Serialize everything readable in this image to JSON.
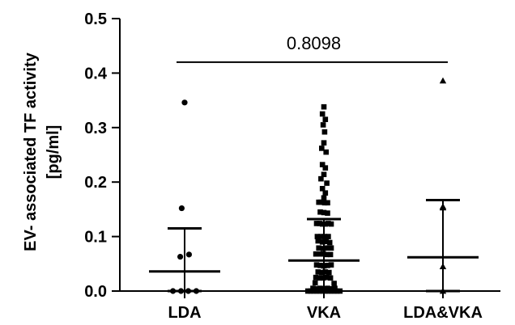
{
  "chart_data": {
    "type": "scatter",
    "subtype": "dot-plot-with-median-and-iqr",
    "ylabel_line1": "EV- associated TF activity",
    "ylabel_line2": "[pg/ml]",
    "ylim": [
      0,
      0.5
    ],
    "yticks": [
      "0.0",
      "0.1",
      "0.2",
      "0.3",
      "0.4",
      "0.5"
    ],
    "categories": [
      "LDA",
      "VKA",
      "LDA&VKA"
    ],
    "annotation": {
      "text": "0.8098",
      "from_category": 0,
      "to_category": 2,
      "y": 0.42
    },
    "groups": [
      {
        "name": "LDA",
        "marker": "circle",
        "median": 0.036,
        "q1": 0.0,
        "q3": 0.115,
        "points": [
          {
            "y": 0.346,
            "dx": 0
          },
          {
            "y": 0.152,
            "dx": -0.2
          },
          {
            "y": 0.067,
            "dx": 0.3
          },
          {
            "y": 0.063,
            "dx": -0.3
          },
          {
            "y": 0.0,
            "dx": -0.8
          },
          {
            "y": 0.0,
            "dx": -0.25
          },
          {
            "y": 0.0,
            "dx": 0.25
          },
          {
            "y": 0.0,
            "dx": 0.8
          }
        ]
      },
      {
        "name": "VKA",
        "marker": "square",
        "median": 0.056,
        "q1": 0.0,
        "q3": 0.132,
        "points": [
          {
            "y": 0.338,
            "dx": 0.0
          },
          {
            "y": 0.325,
            "dx": -0.1
          },
          {
            "y": 0.315,
            "dx": 0.1
          },
          {
            "y": 0.305,
            "dx": -0.05
          },
          {
            "y": 0.292,
            "dx": 0.05
          },
          {
            "y": 0.272,
            "dx": 0.0
          },
          {
            "y": 0.262,
            "dx": -0.15
          },
          {
            "y": 0.255,
            "dx": 0.15
          },
          {
            "y": 0.232,
            "dx": -0.1
          },
          {
            "y": 0.226,
            "dx": 0.1
          },
          {
            "y": 0.214,
            "dx": 0.0
          },
          {
            "y": 0.206,
            "dx": -0.2
          },
          {
            "y": 0.198,
            "dx": 0.2
          },
          {
            "y": 0.188,
            "dx": -0.1
          },
          {
            "y": 0.18,
            "dx": 0.1
          },
          {
            "y": 0.171,
            "dx": 0.0
          },
          {
            "y": 0.163,
            "dx": -0.35
          },
          {
            "y": 0.163,
            "dx": -0.2
          },
          {
            "y": 0.162,
            "dx": 0.05
          },
          {
            "y": 0.162,
            "dx": 0.25
          },
          {
            "y": 0.145,
            "dx": -0.25
          },
          {
            "y": 0.144,
            "dx": 0.0
          },
          {
            "y": 0.143,
            "dx": 0.25
          },
          {
            "y": 0.124,
            "dx": -0.5
          },
          {
            "y": 0.124,
            "dx": -0.3
          },
          {
            "y": 0.123,
            "dx": -0.1
          },
          {
            "y": 0.123,
            "dx": 0.1
          },
          {
            "y": 0.124,
            "dx": 0.3
          },
          {
            "y": 0.123,
            "dx": 0.5
          },
          {
            "y": 0.1,
            "dx": -0.45
          },
          {
            "y": 0.1,
            "dx": -0.2
          },
          {
            "y": 0.1,
            "dx": 0.05
          },
          {
            "y": 0.1,
            "dx": 0.3
          },
          {
            "y": 0.092,
            "dx": -0.4
          },
          {
            "y": 0.09,
            "dx": -0.1
          },
          {
            "y": 0.091,
            "dx": 0.15
          },
          {
            "y": 0.089,
            "dx": 0.4
          },
          {
            "y": 0.079,
            "dx": -0.35
          },
          {
            "y": 0.078,
            "dx": -0.05
          },
          {
            "y": 0.079,
            "dx": 0.25
          },
          {
            "y": 0.079,
            "dx": 0.5
          },
          {
            "y": 0.068,
            "dx": -0.55
          },
          {
            "y": 0.068,
            "dx": -0.3
          },
          {
            "y": 0.068,
            "dx": -0.05
          },
          {
            "y": 0.067,
            "dx": 0.2
          },
          {
            "y": 0.067,
            "dx": 0.45
          },
          {
            "y": 0.048,
            "dx": -0.5
          },
          {
            "y": 0.047,
            "dx": -0.25
          },
          {
            "y": 0.046,
            "dx": 0.0
          },
          {
            "y": 0.047,
            "dx": 0.25
          },
          {
            "y": 0.048,
            "dx": 0.5
          },
          {
            "y": 0.035,
            "dx": -0.4
          },
          {
            "y": 0.034,
            "dx": -0.15
          },
          {
            "y": 0.035,
            "dx": 0.1
          },
          {
            "y": 0.034,
            "dx": 0.35
          },
          {
            "y": 0.025,
            "dx": -0.55
          },
          {
            "y": 0.024,
            "dx": -0.3
          },
          {
            "y": 0.024,
            "dx": -0.05
          },
          {
            "y": 0.025,
            "dx": 0.2
          },
          {
            "y": 0.024,
            "dx": 0.45
          },
          {
            "y": 0.015,
            "dx": -0.6
          },
          {
            "y": 0.014,
            "dx": 0.7
          },
          {
            "y": 0.005,
            "dx": -0.75
          },
          {
            "y": 0.004,
            "dx": -0.5
          },
          {
            "y": 0.005,
            "dx": -0.25
          },
          {
            "y": 0.004,
            "dx": 0.0
          },
          {
            "y": 0.005,
            "dx": 0.25
          },
          {
            "y": 0.004,
            "dx": 0.5
          },
          {
            "y": 0.005,
            "dx": 0.75
          },
          {
            "y": 0.0,
            "dx": -1.1
          },
          {
            "y": 0.0,
            "dx": -0.9
          },
          {
            "y": 0.0,
            "dx": -0.7
          },
          {
            "y": 0.0,
            "dx": -0.5
          },
          {
            "y": 0.0,
            "dx": -0.3
          },
          {
            "y": 0.0,
            "dx": -0.1
          },
          {
            "y": 0.0,
            "dx": 0.1
          },
          {
            "y": 0.0,
            "dx": 0.3
          },
          {
            "y": 0.0,
            "dx": 0.5
          },
          {
            "y": 0.0,
            "dx": 0.7
          },
          {
            "y": 0.0,
            "dx": 0.9
          },
          {
            "y": 0.0,
            "dx": 1.1
          }
        ]
      },
      {
        "name": "LDA&VKA",
        "marker": "triangle",
        "median": 0.062,
        "q1": 0.0,
        "q3": 0.167,
        "points": [
          {
            "y": 0.386,
            "dx": 0.0
          },
          {
            "y": 0.155,
            "dx": 0.0
          },
          {
            "y": 0.153,
            "dx": 0.0
          },
          {
            "y": 0.045,
            "dx": 0.0
          },
          {
            "y": 0.0,
            "dx": 0.0
          }
        ]
      }
    ]
  }
}
